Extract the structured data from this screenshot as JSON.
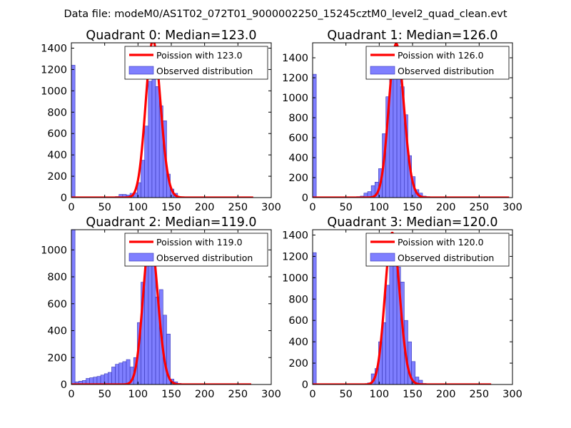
{
  "figure_title": "Data file: modeM0/AS1T02_072T01_9000002250_15245cztM0_level2_quad_clean.evt",
  "colors": {
    "bars": "#7f7fff",
    "bar_edge": "#3535b8",
    "curve": "#ff0000"
  },
  "chart_data": [
    {
      "type": "bar",
      "title": "Quadrant 0: Median=123.0",
      "xlim": [
        0,
        300
      ],
      "ylim": [
        0,
        1450
      ],
      "xticks": [
        0,
        50,
        100,
        150,
        200,
        250,
        300
      ],
      "yticks": [
        0,
        200,
        400,
        600,
        800,
        1000,
        1200,
        1400
      ],
      "bin_width": 5.5,
      "bins": [
        {
          "x": 0,
          "v": 1240
        },
        {
          "x": 66,
          "v": 10
        },
        {
          "x": 71.5,
          "v": 30
        },
        {
          "x": 77,
          "v": 30
        },
        {
          "x": 82.5,
          "v": 25
        },
        {
          "x": 88,
          "v": 40
        },
        {
          "x": 93.5,
          "v": 45
        },
        {
          "x": 99,
          "v": 140
        },
        {
          "x": 104.5,
          "v": 350
        },
        {
          "x": 110,
          "v": 670
        },
        {
          "x": 115.5,
          "v": 1090
        },
        {
          "x": 121,
          "v": 1150
        },
        {
          "x": 126.5,
          "v": 1040
        },
        {
          "x": 132,
          "v": 860
        },
        {
          "x": 137.5,
          "v": 720
        },
        {
          "x": 143,
          "v": 220
        },
        {
          "x": 148.5,
          "v": 80
        },
        {
          "x": 154,
          "v": 40
        },
        {
          "x": 159.5,
          "v": 8
        },
        {
          "x": 165,
          "v": 5
        }
      ],
      "legend": [
        "Poission with 123.0",
        "Observed distribution"
      ],
      "poisson_mean": 123.0,
      "poisson_peak": 1470,
      "curve_xmax": 273
    },
    {
      "type": "bar",
      "title": "Quadrant 1: Median=126.0",
      "xlim": [
        0,
        300
      ],
      "ylim": [
        0,
        1550
      ],
      "xticks": [
        0,
        50,
        100,
        150,
        200,
        250,
        300
      ],
      "yticks": [
        0,
        200,
        400,
        600,
        800,
        1000,
        1200,
        1400
      ],
      "bin_width": 5.5,
      "bins": [
        {
          "x": 0,
          "v": 1235
        },
        {
          "x": 66,
          "v": 10
        },
        {
          "x": 71.5,
          "v": 15
        },
        {
          "x": 77,
          "v": 45
        },
        {
          "x": 82.5,
          "v": 60
        },
        {
          "x": 88,
          "v": 120
        },
        {
          "x": 93.5,
          "v": 155
        },
        {
          "x": 99,
          "v": 290
        },
        {
          "x": 104.5,
          "v": 640
        },
        {
          "x": 110,
          "v": 1010
        },
        {
          "x": 115.5,
          "v": 1290
        },
        {
          "x": 121,
          "v": 1340
        },
        {
          "x": 126.5,
          "v": 1380
        },
        {
          "x": 132,
          "v": 1110
        },
        {
          "x": 137.5,
          "v": 830
        },
        {
          "x": 143,
          "v": 420
        },
        {
          "x": 148.5,
          "v": 210
        },
        {
          "x": 154,
          "v": 80
        },
        {
          "x": 159.5,
          "v": 45
        },
        {
          "x": 165,
          "v": 15
        },
        {
          "x": 170.5,
          "v": 10
        }
      ],
      "legend": [
        "Poission with 126.0",
        "Observed distribution"
      ],
      "poisson_mean": 126.0,
      "poisson_peak": 1540,
      "curve_xmax": 295
    },
    {
      "type": "bar",
      "title": "Quadrant 2: Median=119.0",
      "xlim": [
        0,
        300
      ],
      "ylim": [
        0,
        1150
      ],
      "xticks": [
        0,
        50,
        100,
        150,
        200,
        250,
        300
      ],
      "yticks": [
        0,
        200,
        400,
        600,
        800,
        1000
      ],
      "bin_width": 5.5,
      "bins": [
        {
          "x": 0,
          "v": 1150
        },
        {
          "x": 5.5,
          "v": 20
        },
        {
          "x": 11,
          "v": 25
        },
        {
          "x": 16.5,
          "v": 30
        },
        {
          "x": 22,
          "v": 45
        },
        {
          "x": 27.5,
          "v": 50
        },
        {
          "x": 33,
          "v": 55
        },
        {
          "x": 38.5,
          "v": 60
        },
        {
          "x": 44,
          "v": 70
        },
        {
          "x": 49.5,
          "v": 80
        },
        {
          "x": 55,
          "v": 90
        },
        {
          "x": 60.5,
          "v": 130
        },
        {
          "x": 66,
          "v": 150
        },
        {
          "x": 71.5,
          "v": 160
        },
        {
          "x": 77,
          "v": 170
        },
        {
          "x": 82.5,
          "v": 185
        },
        {
          "x": 88,
          "v": 130
        },
        {
          "x": 93.5,
          "v": 200
        },
        {
          "x": 99,
          "v": 460
        },
        {
          "x": 104.5,
          "v": 760
        },
        {
          "x": 110,
          "v": 1000
        },
        {
          "x": 115.5,
          "v": 1020
        },
        {
          "x": 121,
          "v": 1040
        },
        {
          "x": 126.5,
          "v": 650
        },
        {
          "x": 132,
          "v": 705
        },
        {
          "x": 137.5,
          "v": 515
        },
        {
          "x": 143,
          "v": 375
        },
        {
          "x": 148.5,
          "v": 40
        },
        {
          "x": 154,
          "v": 20
        },
        {
          "x": 159.5,
          "v": 8
        }
      ],
      "legend": [
        "Poission with 119.0",
        "Observed distribution"
      ],
      "poisson_mean": 119.0,
      "poisson_peak": 1100,
      "curve_xmax": 270
    },
    {
      "type": "bar",
      "title": "Quadrant 3: Median=120.0",
      "xlim": [
        0,
        300
      ],
      "ylim": [
        0,
        1450
      ],
      "xticks": [
        0,
        50,
        100,
        150,
        200,
        250,
        300
      ],
      "yticks": [
        0,
        200,
        400,
        600,
        800,
        1000,
        1200,
        1400
      ],
      "bin_width": 5.5,
      "bins": [
        {
          "x": 0,
          "v": 1235
        },
        {
          "x": 66,
          "v": 8
        },
        {
          "x": 82.5,
          "v": 15
        },
        {
          "x": 88,
          "v": 100
        },
        {
          "x": 93.5,
          "v": 150
        },
        {
          "x": 99,
          "v": 400
        },
        {
          "x": 104.5,
          "v": 580
        },
        {
          "x": 110,
          "v": 930
        },
        {
          "x": 115.5,
          "v": 1270
        },
        {
          "x": 121,
          "v": 1320
        },
        {
          "x": 126.5,
          "v": 1100
        },
        {
          "x": 132,
          "v": 960
        },
        {
          "x": 137.5,
          "v": 600
        },
        {
          "x": 143,
          "v": 400
        },
        {
          "x": 148.5,
          "v": 215
        },
        {
          "x": 154,
          "v": 70
        },
        {
          "x": 159.5,
          "v": 40
        },
        {
          "x": 165,
          "v": 10
        }
      ],
      "legend": [
        "Poission with 120.0",
        "Observed distribution"
      ],
      "poisson_mean": 120.0,
      "poisson_peak": 1420,
      "curve_xmax": 268
    }
  ]
}
